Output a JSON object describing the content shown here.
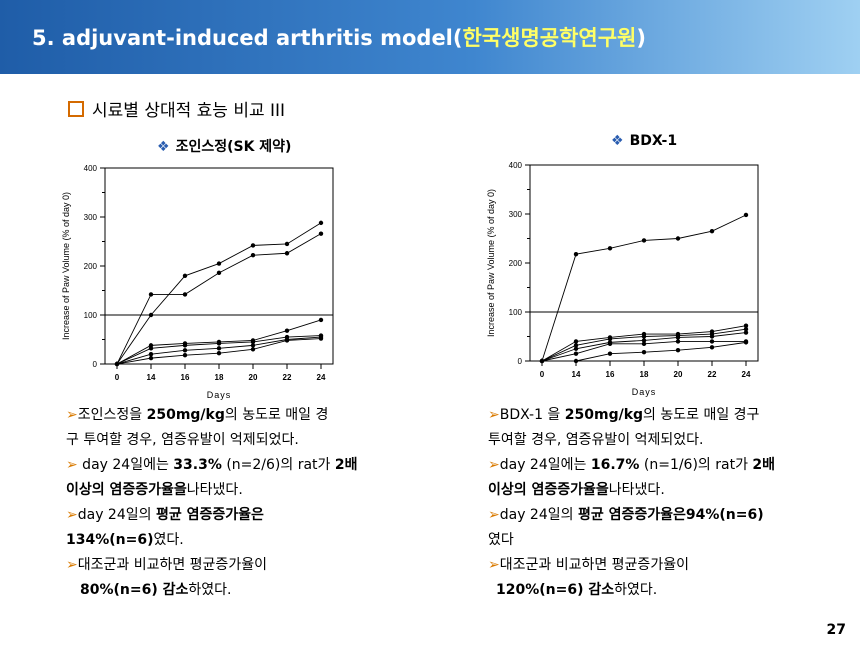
{
  "header": {
    "title_main": "5. adjuvant-induced arthritis model(",
    "title_org": "한국생명공학연구원",
    "title_end": ")"
  },
  "subtitle": "시료별 상대적 효능 비교 III",
  "left_chart_title": "조인스정(SK 제약)",
  "right_chart_title": "BDX-1",
  "chart_data": [
    {
      "type": "line",
      "xlabel": "Days",
      "ylabel": "Increase of Paw Volume (% of day 0)",
      "x_ticks": [
        "0",
        "14",
        "16",
        "18",
        "20",
        "22",
        "24"
      ],
      "y_ticks": [
        0,
        100,
        200,
        300,
        400
      ],
      "ylim": [
        0,
        400
      ],
      "reference_line": 100,
      "series": [
        {
          "values": [
            0,
            100,
            180,
            205,
            242,
            245,
            288
          ]
        },
        {
          "values": [
            0,
            142,
            142,
            186,
            222,
            226,
            266
          ]
        },
        {
          "values": [
            0,
            38,
            42,
            45,
            48,
            68,
            90
          ]
        },
        {
          "values": [
            0,
            32,
            38,
            42,
            45,
            55,
            58
          ]
        },
        {
          "values": [
            0,
            20,
            28,
            32,
            38,
            50,
            55
          ]
        },
        {
          "values": [
            0,
            12,
            18,
            22,
            30,
            48,
            52
          ]
        }
      ]
    },
    {
      "type": "line",
      "xlabel": "Days",
      "ylabel": "Increase of Paw Volume (% of day 0)",
      "x_ticks": [
        "0",
        "14",
        "16",
        "18",
        "20",
        "22",
        "24"
      ],
      "y_ticks": [
        0,
        100,
        200,
        300,
        400
      ],
      "ylim": [
        0,
        400
      ],
      "reference_line": 100,
      "series": [
        {
          "values": [
            0,
            218,
            230,
            246,
            250,
            265,
            298
          ]
        },
        {
          "values": [
            0,
            40,
            48,
            55,
            55,
            60,
            72
          ]
        },
        {
          "values": [
            0,
            32,
            45,
            50,
            52,
            55,
            65
          ]
        },
        {
          "values": [
            0,
            25,
            38,
            42,
            48,
            50,
            58
          ]
        },
        {
          "values": [
            0,
            15,
            35,
            35,
            40,
            40,
            40
          ]
        },
        {
          "values": [
            0,
            0,
            15,
            18,
            22,
            28,
            38
          ]
        }
      ]
    }
  ],
  "left_notes": {
    "n1a": "조인스정을 ",
    "n1b": "250mg/kg",
    "n1c": "의 농도로 매일 경",
    "n1d": "구 투여할 경우, 염증유발이 억제되었다.",
    "n2a": " day 24일에는 ",
    "n2b": "33.3%",
    "n2c": " (n=2/6)의 rat가 ",
    "n2d": "2배",
    "n2e": "이상의 염증증가율을",
    "n2f": "나타냈다.",
    "n3a": "day 24일의 ",
    "n3b": "평균 염증증가율은",
    "n3c": "134%(n=6)",
    "n3d": "였다.",
    "n4a": "대조군과 비교하면 평균증가율이",
    "n4b": "80%(n=6) 감소",
    "n4c": "하였다."
  },
  "right_notes": {
    "n1a": "BDX-1 을 ",
    "n1b": "250mg/kg",
    "n1c": "의 농도로 매일 경구",
    "n1d": "투여할 경우, 염증유발이 억제되었다.",
    "n2a": "day 24일에는 ",
    "n2b": "16.7%",
    "n2c": " (n=1/6)의 rat가 ",
    "n2d": "2배",
    "n2e": "이상의 염증증가율을",
    "n2f": "나타냈다.",
    "n3a": "day 24일의 ",
    "n3b": "평균 염증증가율은",
    "n3c": "94%(n=6)",
    "n3d": "였다",
    "n4a": "대조군과 비교하면 평균증가율이",
    "n4b": "120%(n=6) 감소",
    "n4c": "하였다."
  },
  "page_number": "27"
}
